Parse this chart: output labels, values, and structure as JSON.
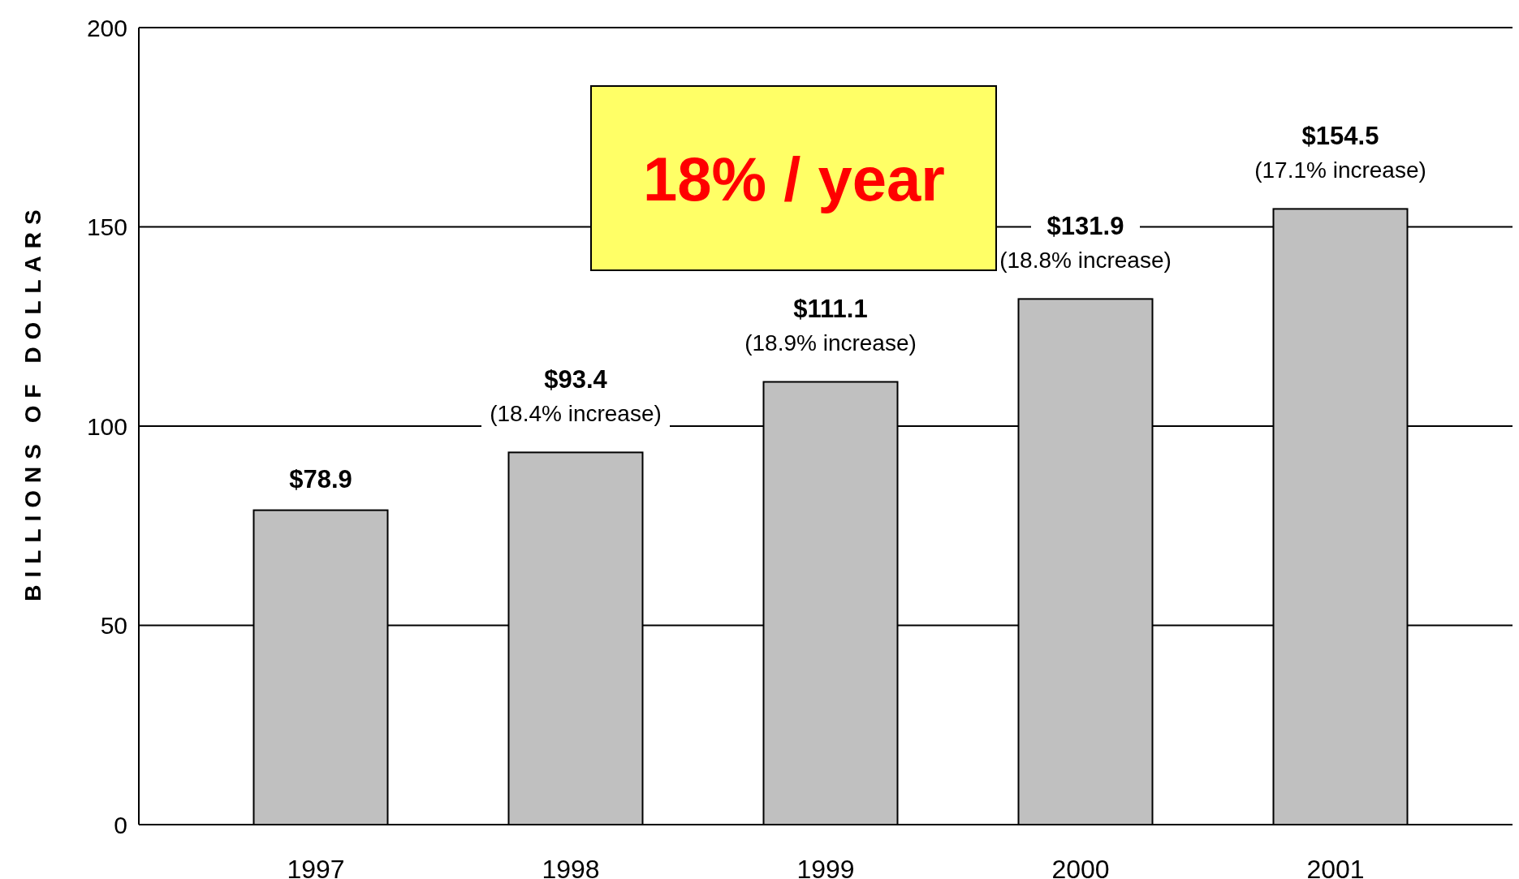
{
  "chart_data": {
    "type": "bar",
    "ylabel": "BILLIONS OF DOLLARS",
    "categories": [
      "1997",
      "1998",
      "1999",
      "2000",
      "2001"
    ],
    "values": [
      78.9,
      93.4,
      111.1,
      131.9,
      154.5
    ],
    "color": "#c0c0c0",
    "value_labels": [
      "$78.9",
      "$93.4",
      "$111.1",
      "$131.9",
      "$154.5"
    ],
    "ylim": [
      0,
      200
    ],
    "yticks": [
      0,
      50,
      100,
      150,
      200
    ],
    "grid": "y",
    "annotations": [
      {
        "text": "(18.4% increase)",
        "x": "1998",
        "y": 93.4
      },
      {
        "text": "(18.9% increase)",
        "x": "1999",
        "y": 111.1
      },
      {
        "text": "(18.8% increase)",
        "x": "2000",
        "y": 131.9
      },
      {
        "text": "(17.1% increase)",
        "x": "2001",
        "y": 154.5
      },
      "18% / year"
    ]
  }
}
